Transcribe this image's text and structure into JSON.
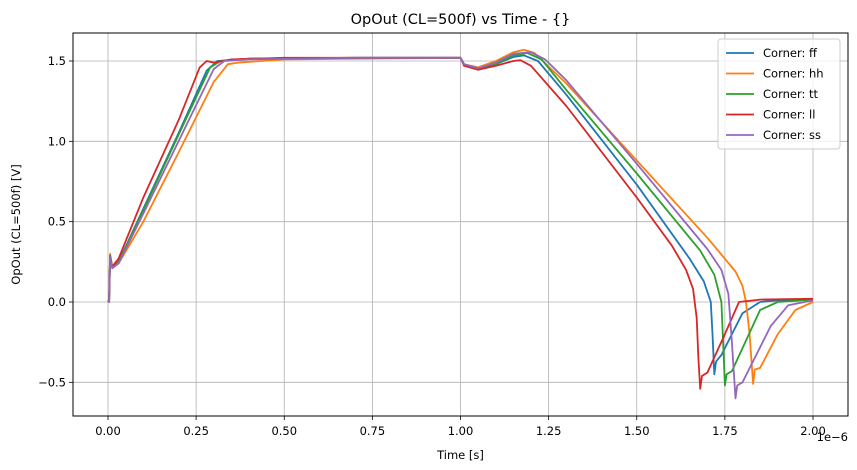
{
  "chart_data": {
    "type": "line",
    "title": "OpOut (CL=500f) vs Time - {}",
    "xlabel": "Time [s]",
    "ylabel": "OpOut (CL=500f) [V]",
    "x_scale_label": "1e−6",
    "xlim": [
      -0.1,
      2.1
    ],
    "ylim": [
      -0.72,
      1.68
    ],
    "x_ticks": [
      "0.00",
      "0.25",
      "0.50",
      "0.75",
      "1.00",
      "1.25",
      "1.50",
      "1.75",
      "2.00"
    ],
    "x_tick_values": [
      0.0,
      0.25,
      0.5,
      0.75,
      1.0,
      1.25,
      1.5,
      1.75,
      2.0
    ],
    "y_ticks": [
      "−0.5",
      "0.0",
      "0.5",
      "1.0",
      "1.5"
    ],
    "y_tick_values": [
      -0.5,
      0.0,
      0.5,
      1.0,
      1.5
    ],
    "grid": true,
    "legend_position": "upper right",
    "series": [
      {
        "name": "Corner: ff",
        "color": "#1f77b4",
        "points": [
          [
            0.0,
            0.01
          ],
          [
            0.003,
            0.0
          ],
          [
            0.006,
            0.29
          ],
          [
            0.012,
            0.22
          ],
          [
            0.03,
            0.25
          ],
          [
            0.1,
            0.58
          ],
          [
            0.2,
            1.05
          ],
          [
            0.28,
            1.44
          ],
          [
            0.31,
            1.5
          ],
          [
            0.4,
            1.515
          ],
          [
            0.7,
            1.52
          ],
          [
            1.0,
            1.52
          ],
          [
            1.01,
            1.48
          ],
          [
            1.05,
            1.455
          ],
          [
            1.1,
            1.48
          ],
          [
            1.15,
            1.525
          ],
          [
            1.18,
            1.535
          ],
          [
            1.22,
            1.5
          ],
          [
            1.3,
            1.29
          ],
          [
            1.5,
            0.73
          ],
          [
            1.65,
            0.27
          ],
          [
            1.69,
            0.13
          ],
          [
            1.71,
            0.0
          ],
          [
            1.715,
            -0.2
          ],
          [
            1.72,
            -0.45
          ],
          [
            1.725,
            -0.37
          ],
          [
            1.74,
            -0.33
          ],
          [
            1.8,
            -0.07
          ],
          [
            1.85,
            0.0
          ],
          [
            1.9,
            0.01
          ],
          [
            2.0,
            0.015
          ]
        ]
      },
      {
        "name": "Corner: hh",
        "color": "#ff7f0e",
        "points": [
          [
            0.0,
            0.01
          ],
          [
            0.003,
            0.0
          ],
          [
            0.006,
            0.3
          ],
          [
            0.012,
            0.22
          ],
          [
            0.03,
            0.24
          ],
          [
            0.1,
            0.5
          ],
          [
            0.2,
            0.93
          ],
          [
            0.3,
            1.37
          ],
          [
            0.34,
            1.48
          ],
          [
            0.37,
            1.49
          ],
          [
            0.5,
            1.51
          ],
          [
            1.0,
            1.52
          ],
          [
            1.01,
            1.48
          ],
          [
            1.05,
            1.46
          ],
          [
            1.1,
            1.5
          ],
          [
            1.15,
            1.555
          ],
          [
            1.18,
            1.57
          ],
          [
            1.21,
            1.55
          ],
          [
            1.3,
            1.36
          ],
          [
            1.5,
            0.88
          ],
          [
            1.7,
            0.4
          ],
          [
            1.78,
            0.19
          ],
          [
            1.8,
            0.1
          ],
          [
            1.81,
            0.0
          ],
          [
            1.82,
            -0.2
          ],
          [
            1.83,
            -0.51
          ],
          [
            1.835,
            -0.42
          ],
          [
            1.85,
            -0.41
          ],
          [
            1.9,
            -0.2
          ],
          [
            1.95,
            -0.05
          ],
          [
            2.0,
            0.0
          ]
        ]
      },
      {
        "name": "Corner: tt",
        "color": "#2ca02c",
        "points": [
          [
            0.0,
            0.01
          ],
          [
            0.003,
            0.0
          ],
          [
            0.006,
            0.29
          ],
          [
            0.012,
            0.22
          ],
          [
            0.03,
            0.25
          ],
          [
            0.1,
            0.57
          ],
          [
            0.2,
            1.04
          ],
          [
            0.29,
            1.46
          ],
          [
            0.32,
            1.5
          ],
          [
            0.4,
            1.515
          ],
          [
            0.7,
            1.52
          ],
          [
            1.0,
            1.52
          ],
          [
            1.01,
            1.48
          ],
          [
            1.05,
            1.455
          ],
          [
            1.1,
            1.48
          ],
          [
            1.15,
            1.535
          ],
          [
            1.19,
            1.55
          ],
          [
            1.23,
            1.51
          ],
          [
            1.3,
            1.32
          ],
          [
            1.5,
            0.8
          ],
          [
            1.68,
            0.32
          ],
          [
            1.72,
            0.17
          ],
          [
            1.74,
            0.0
          ],
          [
            1.745,
            -0.25
          ],
          [
            1.75,
            -0.52
          ],
          [
            1.755,
            -0.45
          ],
          [
            1.77,
            -0.43
          ],
          [
            1.85,
            -0.05
          ],
          [
            1.9,
            0.0
          ],
          [
            2.0,
            0.015
          ]
        ]
      },
      {
        "name": "Corner: ll",
        "color": "#d62728",
        "points": [
          [
            0.0,
            0.01
          ],
          [
            0.003,
            0.0
          ],
          [
            0.006,
            0.28
          ],
          [
            0.012,
            0.22
          ],
          [
            0.03,
            0.27
          ],
          [
            0.1,
            0.65
          ],
          [
            0.2,
            1.13
          ],
          [
            0.26,
            1.46
          ],
          [
            0.28,
            1.5
          ],
          [
            0.3,
            1.49
          ],
          [
            0.35,
            1.51
          ],
          [
            0.5,
            1.52
          ],
          [
            1.0,
            1.52
          ],
          [
            1.01,
            1.47
          ],
          [
            1.05,
            1.445
          ],
          [
            1.1,
            1.47
          ],
          [
            1.15,
            1.5
          ],
          [
            1.17,
            1.505
          ],
          [
            1.2,
            1.47
          ],
          [
            1.3,
            1.22
          ],
          [
            1.5,
            0.65
          ],
          [
            1.6,
            0.35
          ],
          [
            1.64,
            0.2
          ],
          [
            1.66,
            0.08
          ],
          [
            1.67,
            -0.1
          ],
          [
            1.675,
            -0.35
          ],
          [
            1.68,
            -0.54
          ],
          [
            1.685,
            -0.46
          ],
          [
            1.7,
            -0.44
          ],
          [
            1.75,
            -0.2
          ],
          [
            1.79,
            0.0
          ],
          [
            1.85,
            0.015
          ],
          [
            2.0,
            0.02
          ]
        ]
      },
      {
        "name": "Corner: ss",
        "color": "#9467bd",
        "points": [
          [
            0.0,
            0.01
          ],
          [
            0.003,
            0.0
          ],
          [
            0.006,
            0.28
          ],
          [
            0.012,
            0.21
          ],
          [
            0.03,
            0.24
          ],
          [
            0.1,
            0.55
          ],
          [
            0.2,
            1.0
          ],
          [
            0.3,
            1.45
          ],
          [
            0.33,
            1.5
          ],
          [
            0.4,
            1.51
          ],
          [
            0.7,
            1.52
          ],
          [
            1.0,
            1.52
          ],
          [
            1.01,
            1.48
          ],
          [
            1.05,
            1.455
          ],
          [
            1.1,
            1.49
          ],
          [
            1.15,
            1.545
          ],
          [
            1.2,
            1.555
          ],
          [
            1.24,
            1.51
          ],
          [
            1.3,
            1.38
          ],
          [
            1.5,
            0.86
          ],
          [
            1.7,
            0.33
          ],
          [
            1.74,
            0.2
          ],
          [
            1.76,
            0.05
          ],
          [
            1.77,
            -0.25
          ],
          [
            1.78,
            -0.6
          ],
          [
            1.785,
            -0.52
          ],
          [
            1.8,
            -0.5
          ],
          [
            1.88,
            -0.15
          ],
          [
            1.93,
            -0.02
          ],
          [
            2.0,
            0.01
          ]
        ]
      }
    ]
  }
}
